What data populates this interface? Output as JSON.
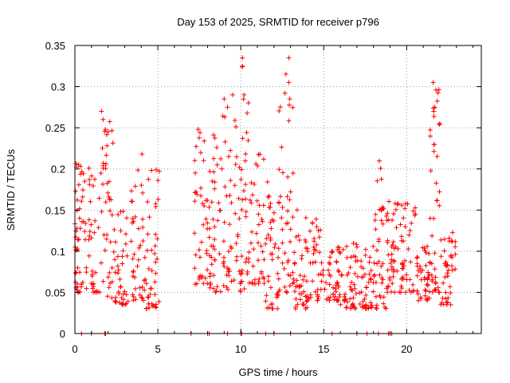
{
  "chart_data": {
    "type": "scatter",
    "title": "Day 153 of 2025, SRMTID for receiver p796",
    "xlabel": "GPS time / hours",
    "ylabel": "SRMTID / TECUs",
    "xlim": [
      0,
      24.5
    ],
    "ylim": [
      0,
      0.35
    ],
    "x_ticks": [
      0,
      5,
      10,
      15,
      20
    ],
    "x_tick_labels": [
      "0",
      "5",
      "10",
      "15",
      "20"
    ],
    "y_ticks": [
      0,
      0.05,
      0.1,
      0.15,
      0.2,
      0.25,
      0.3,
      0.35
    ],
    "y_tick_labels": [
      "0",
      "0.05",
      "0.1",
      "0.15",
      "0.2",
      "0.25",
      "0.3",
      "0.35"
    ],
    "grid": true,
    "legend": "none",
    "series": [
      {
        "name": "SRMTID",
        "color": "#ff0000",
        "marker": "+",
        "point_count_estimate": 2500,
        "profile": [
          {
            "x_range": [
              0.0,
              0.5
            ],
            "y_range": [
              0.05,
              0.21
            ]
          },
          {
            "x_range": [
              0.5,
              1.5
            ],
            "y_range": [
              0.05,
              0.21
            ]
          },
          {
            "x_range": [
              1.5,
              2.3
            ],
            "y_range": [
              0.04,
              0.27
            ]
          },
          {
            "x_range": [
              2.3,
              3.3
            ],
            "y_range": [
              0.035,
              0.15
            ]
          },
          {
            "x_range": [
              3.3,
              4.3
            ],
            "y_range": [
              0.04,
              0.22
            ]
          },
          {
            "x_range": [
              4.3,
              5.1
            ],
            "y_range": [
              0.03,
              0.2
            ]
          },
          {
            "x_range": [
              7.2,
              8.0
            ],
            "y_range": [
              0.06,
              0.25
            ]
          },
          {
            "x_range": [
              8.0,
              8.8
            ],
            "y_range": [
              0.05,
              0.25
            ]
          },
          {
            "x_range": [
              8.8,
              9.8
            ],
            "y_range": [
              0.05,
              0.29
            ]
          },
          {
            "x_range": [
              9.8,
              10.5
            ],
            "y_range": [
              0.05,
              0.335
            ]
          },
          {
            "x_range": [
              10.5,
              11.5
            ],
            "y_range": [
              0.06,
              0.22
            ]
          },
          {
            "x_range": [
              11.5,
              12.3
            ],
            "y_range": [
              0.03,
              0.2
            ]
          },
          {
            "x_range": [
              12.3,
              13.2
            ],
            "y_range": [
              0.05,
              0.335
            ]
          },
          {
            "x_range": [
              13.2,
              14.0
            ],
            "y_range": [
              0.03,
              0.18
            ]
          },
          {
            "x_range": [
              14.0,
              15.0
            ],
            "y_range": [
              0.04,
              0.14
            ]
          },
          {
            "x_range": [
              15.0,
              16.0
            ],
            "y_range": [
              0.04,
              0.11
            ]
          },
          {
            "x_range": [
              16.0,
              17.0
            ],
            "y_range": [
              0.03,
              0.11
            ]
          },
          {
            "x_range": [
              17.0,
              18.0
            ],
            "y_range": [
              0.03,
              0.11
            ]
          },
          {
            "x_range": [
              18.0,
              18.8
            ],
            "y_range": [
              0.03,
              0.21
            ]
          },
          {
            "x_range": [
              18.8,
              19.6
            ],
            "y_range": [
              0.05,
              0.17
            ]
          },
          {
            "x_range": [
              19.6,
              20.6
            ],
            "y_range": [
              0.05,
              0.16
            ]
          },
          {
            "x_range": [
              20.6,
              21.4
            ],
            "y_range": [
              0.04,
              0.11
            ]
          },
          {
            "x_range": [
              21.4,
              22.0
            ],
            "y_range": [
              0.05,
              0.305
            ]
          },
          {
            "x_range": [
              22.0,
              23.0
            ],
            "y_range": [
              0.035,
              0.13
            ]
          }
        ],
        "highlights": [
          {
            "x": 1.6,
            "y": 0.27
          },
          {
            "x": 1.7,
            "y": 0.26
          },
          {
            "x": 9.0,
            "y": 0.285
          },
          {
            "x": 9.2,
            "y": 0.275
          },
          {
            "x": 10.1,
            "y": 0.335
          },
          {
            "x": 10.2,
            "y": 0.29
          },
          {
            "x": 12.9,
            "y": 0.335
          },
          {
            "x": 12.9,
            "y": 0.305
          },
          {
            "x": 12.95,
            "y": 0.285
          },
          {
            "x": 21.6,
            "y": 0.305
          },
          {
            "x": 21.7,
            "y": 0.275
          },
          {
            "x": 22.0,
            "y": 0.255
          }
        ],
        "zero_values_x": [
          0.4,
          1.0,
          1.8,
          1.85,
          7.0,
          8.0,
          8.1,
          9.2,
          10.0,
          10.05,
          11.5,
          12.0,
          13.0,
          15.5,
          17.0,
          17.6,
          18.3,
          18.9,
          19.0,
          19.1
        ]
      }
    ]
  }
}
